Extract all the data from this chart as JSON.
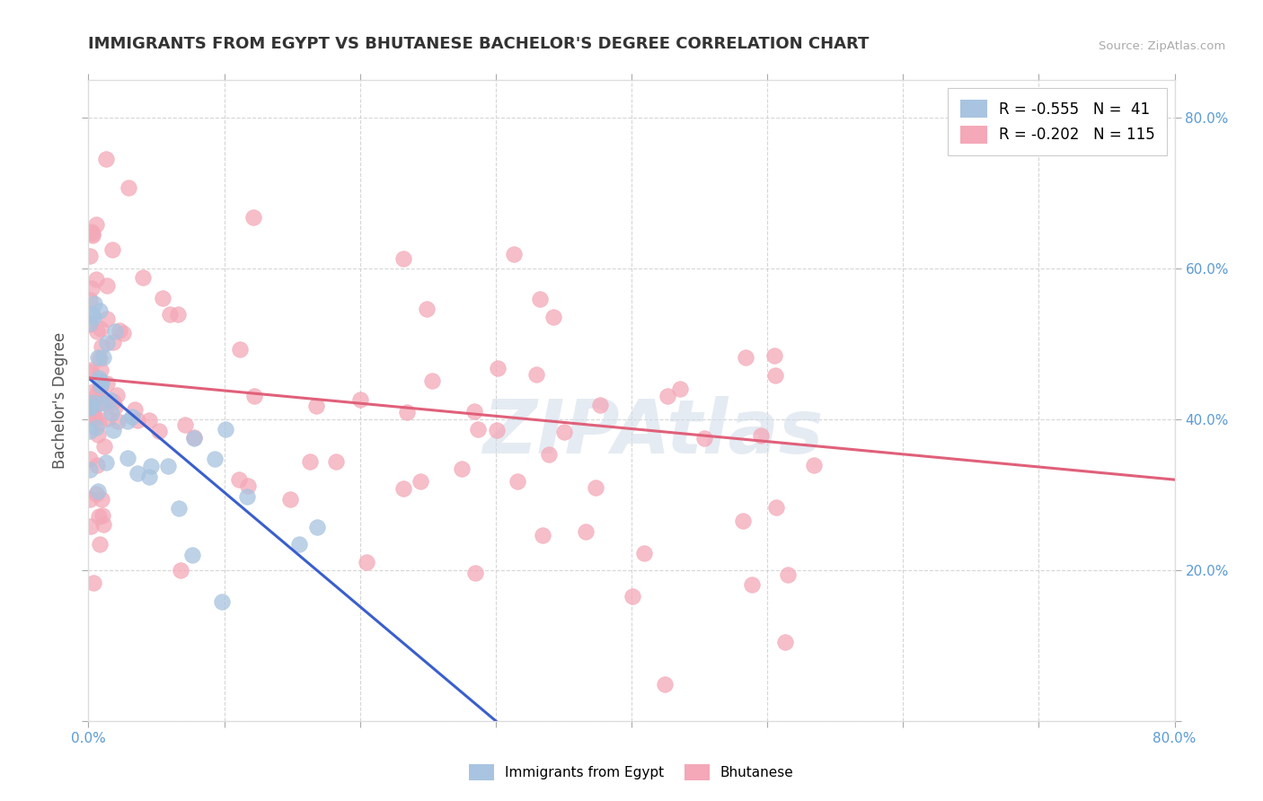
{
  "title": "IMMIGRANTS FROM EGYPT VS BHUTANESE BACHELOR'S DEGREE CORRELATION CHART",
  "source_text": "Source: ZipAtlas.com",
  "ylabel": "Bachelor's Degree",
  "xlim": [
    0.0,
    0.8
  ],
  "ylim": [
    0.0,
    0.85
  ],
  "xticks": [
    0.0,
    0.1,
    0.2,
    0.3,
    0.4,
    0.5,
    0.6,
    0.7,
    0.8
  ],
  "yticks": [
    0.0,
    0.2,
    0.4,
    0.6,
    0.8
  ],
  "series1_color": "#a8c4e0",
  "series2_color": "#f4a8b8",
  "line1_color": "#3a5fcd",
  "line2_color": "#e0607a",
  "watermark": "ZIPAtlas",
  "background_color": "#ffffff",
  "series1_name": "Immigrants from Egypt",
  "series2_name": "Bhutanese",
  "r1": "-0.555",
  "n1": "41",
  "r2": "-0.202",
  "n2": "115",
  "egypt_trend_x0": 0.0,
  "egypt_trend_y0": 0.455,
  "egypt_trend_x1": 0.3,
  "egypt_trend_y1": 0.0,
  "bhutan_trend_x0": 0.0,
  "bhutan_trend_y0": 0.455,
  "bhutan_trend_x1": 0.8,
  "bhutan_trend_y1": 0.32,
  "title_fontsize": 13,
  "tick_fontsize": 11,
  "tick_color": "#5b9bd5",
  "ylabel_fontsize": 12,
  "ylabel_color": "#555555"
}
